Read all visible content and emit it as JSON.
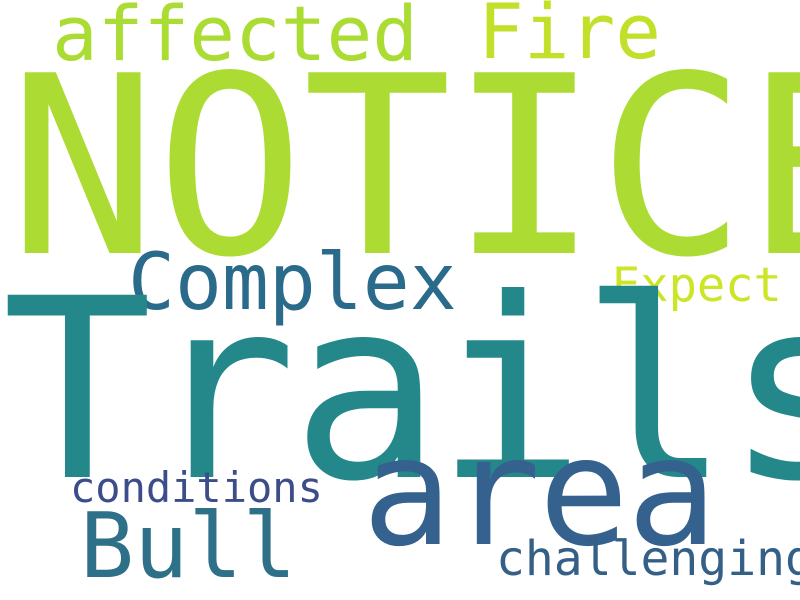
{
  "words": [
    {
      "id": "notice",
      "text": "NOTICE",
      "color": "#acdc33"
    },
    {
      "id": "affected",
      "text": "affected",
      "color": "#aadc33"
    },
    {
      "id": "fire",
      "text": "Fire",
      "color": "#c0e02a"
    },
    {
      "id": "complex",
      "text": "Complex",
      "color": "#2a6a8a"
    },
    {
      "id": "expect",
      "text": "Expect",
      "color": "#cde527"
    },
    {
      "id": "trails",
      "text": "Trails",
      "color": "#24888b"
    },
    {
      "id": "area",
      "text": "area",
      "color": "#34618d"
    },
    {
      "id": "conditions",
      "text": "conditions",
      "color": "#3c4d8a"
    },
    {
      "id": "bull",
      "text": "Bull",
      "color": "#2d7088"
    },
    {
      "id": "challenging",
      "text": "challenging",
      "color": "#346088"
    }
  ]
}
